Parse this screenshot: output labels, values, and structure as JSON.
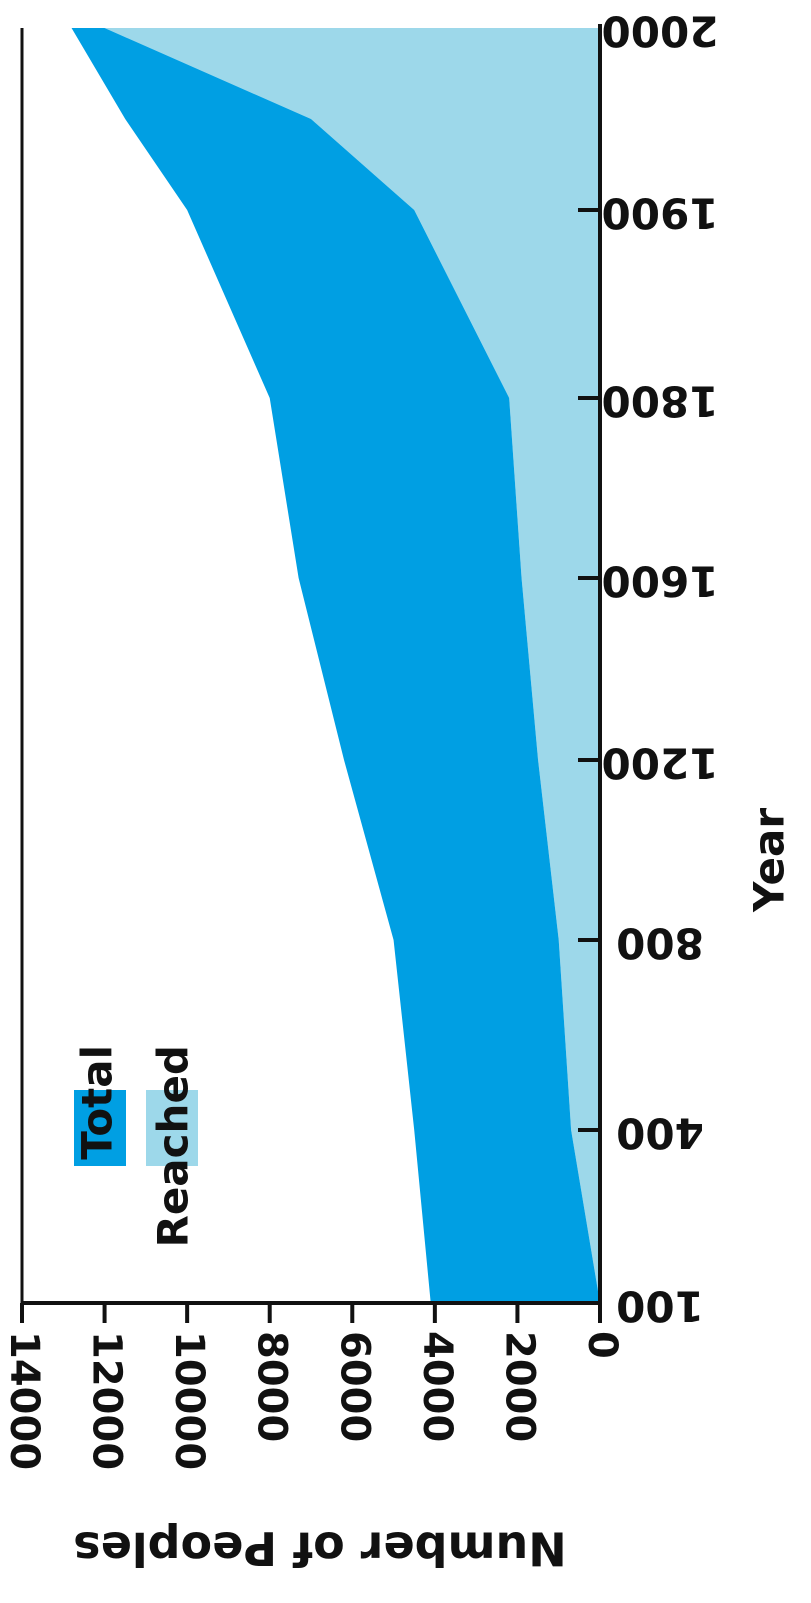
{
  "chart_data": {
    "type": "area",
    "orientation": "rotated",
    "x_axis_label": "Year",
    "y_axis_label": "Number of Peoples",
    "x_ticks": [
      100,
      400,
      800,
      1200,
      1600,
      1800,
      1900,
      2000
    ],
    "y_ticks": [
      0,
      2000,
      4000,
      6000,
      8000,
      10000,
      12000,
      14000
    ],
    "ylim": [
      0,
      14000
    ],
    "series": [
      {
        "name": "Total",
        "color": "#009fe3",
        "points": [
          {
            "year": 100,
            "value": 4100
          },
          {
            "year": 400,
            "value": 4500
          },
          {
            "year": 800,
            "value": 5000
          },
          {
            "year": 1200,
            "value": 6200
          },
          {
            "year": 1600,
            "value": 7300
          },
          {
            "year": 1800,
            "value": 8000
          },
          {
            "year": 1900,
            "value": 10000
          },
          {
            "year": 1950,
            "value": 11500
          },
          {
            "year": 2000,
            "value": 12800
          }
        ]
      },
      {
        "name": "Reached",
        "color": "#9dd8ea",
        "points": [
          {
            "year": 100,
            "value": 0
          },
          {
            "year": 400,
            "value": 700
          },
          {
            "year": 800,
            "value": 1000
          },
          {
            "year": 1200,
            "value": 1500
          },
          {
            "year": 1600,
            "value": 1900
          },
          {
            "year": 1800,
            "value": 2200
          },
          {
            "year": 1900,
            "value": 4500
          },
          {
            "year": 1950,
            "value": 7000
          },
          {
            "year": 2000,
            "value": 12000
          }
        ]
      }
    ],
    "legend": {
      "placement": "bottom-left",
      "items": [
        "Total",
        "Reached"
      ]
    }
  }
}
